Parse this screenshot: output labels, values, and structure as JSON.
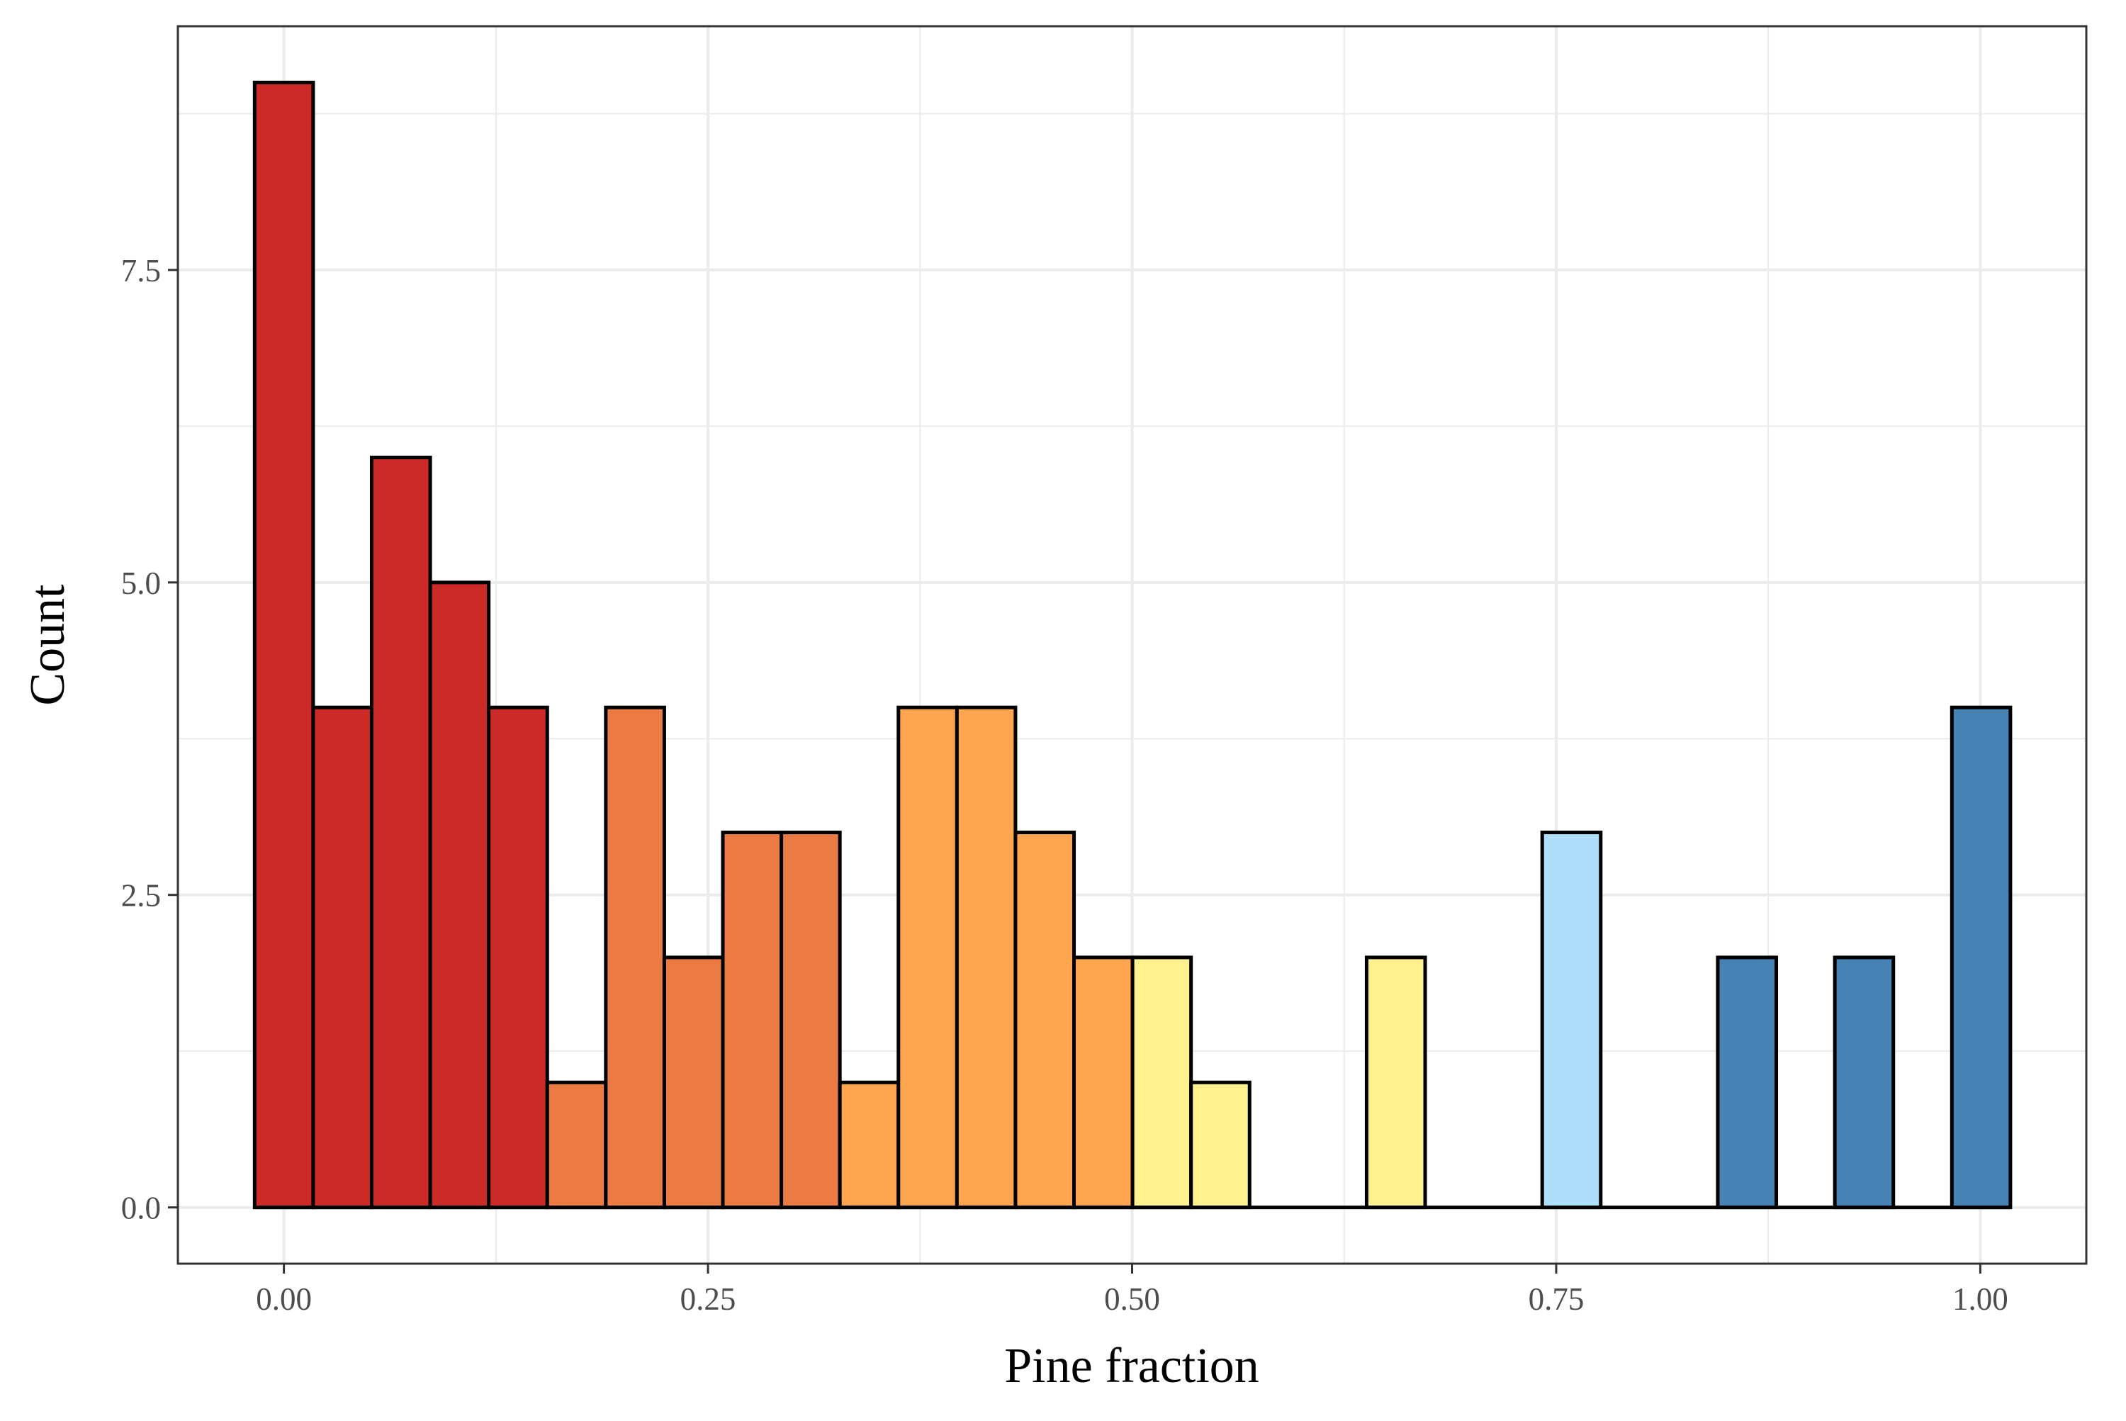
{
  "chart_data": {
    "type": "bar",
    "xlabel": "Pine fraction",
    "ylabel": "Count",
    "xlim": [
      -0.0625,
      1.0625
    ],
    "ylim": [
      -0.45,
      9.45
    ],
    "x_ticks": [
      0.0,
      0.25,
      0.5,
      0.75,
      1.0
    ],
    "x_tick_labels": [
      "0.00",
      "0.25",
      "0.50",
      "0.75",
      "1.00"
    ],
    "y_ticks": [
      0.0,
      2.5,
      5.0,
      7.5
    ],
    "y_tick_labels": [
      "0.0",
      "2.5",
      "5.0",
      "7.5"
    ],
    "grid": true,
    "bin_width": 0.0345,
    "bin_start": -0.01725,
    "colors": {
      "red": "#CC2A26",
      "dark_orange": "#EC7A43",
      "orange": "#FDA54F",
      "yellow": "#FEF18E",
      "light_blue": "#AEDFFA",
      "blue": "#4682B4"
    },
    "bins": [
      {
        "x": 0.0,
        "count": 9,
        "color": "red"
      },
      {
        "x": 0.0345,
        "count": 4,
        "color": "red"
      },
      {
        "x": 0.069,
        "count": 6,
        "color": "red"
      },
      {
        "x": 0.1035,
        "count": 5,
        "color": "red"
      },
      {
        "x": 0.138,
        "count": 4,
        "color": "red"
      },
      {
        "x": 0.1725,
        "count": 1,
        "color": "dark_orange"
      },
      {
        "x": 0.207,
        "count": 4,
        "color": "dark_orange"
      },
      {
        "x": 0.2415,
        "count": 2,
        "color": "dark_orange"
      },
      {
        "x": 0.276,
        "count": 3,
        "color": "dark_orange"
      },
      {
        "x": 0.3105,
        "count": 3,
        "color": "dark_orange"
      },
      {
        "x": 0.345,
        "count": 1,
        "color": "orange"
      },
      {
        "x": 0.3795,
        "count": 4,
        "color": "orange"
      },
      {
        "x": 0.414,
        "count": 4,
        "color": "orange"
      },
      {
        "x": 0.4485,
        "count": 3,
        "color": "orange"
      },
      {
        "x": 0.483,
        "count": 2,
        "color": "orange"
      },
      {
        "x": 0.5175,
        "count": 2,
        "color": "yellow"
      },
      {
        "x": 0.552,
        "count": 1,
        "color": "yellow"
      },
      {
        "x": 0.5865,
        "count": 0,
        "color": "yellow"
      },
      {
        "x": 0.621,
        "count": 0,
        "color": "yellow"
      },
      {
        "x": 0.6555,
        "count": 2,
        "color": "yellow"
      },
      {
        "x": 0.69,
        "count": 0,
        "color": "yellow"
      },
      {
        "x": 0.7245,
        "count": 0,
        "color": "light_blue"
      },
      {
        "x": 0.759,
        "count": 3,
        "color": "light_blue"
      },
      {
        "x": 0.7935,
        "count": 0,
        "color": "light_blue"
      },
      {
        "x": 0.828,
        "count": 0,
        "color": "blue"
      },
      {
        "x": 0.8625,
        "count": 2,
        "color": "blue"
      },
      {
        "x": 0.897,
        "count": 0,
        "color": "blue"
      },
      {
        "x": 0.9315,
        "count": 2,
        "color": "blue"
      },
      {
        "x": 0.966,
        "count": 0,
        "color": "blue"
      },
      {
        "x": 1.0005,
        "count": 4,
        "color": "blue"
      }
    ]
  }
}
